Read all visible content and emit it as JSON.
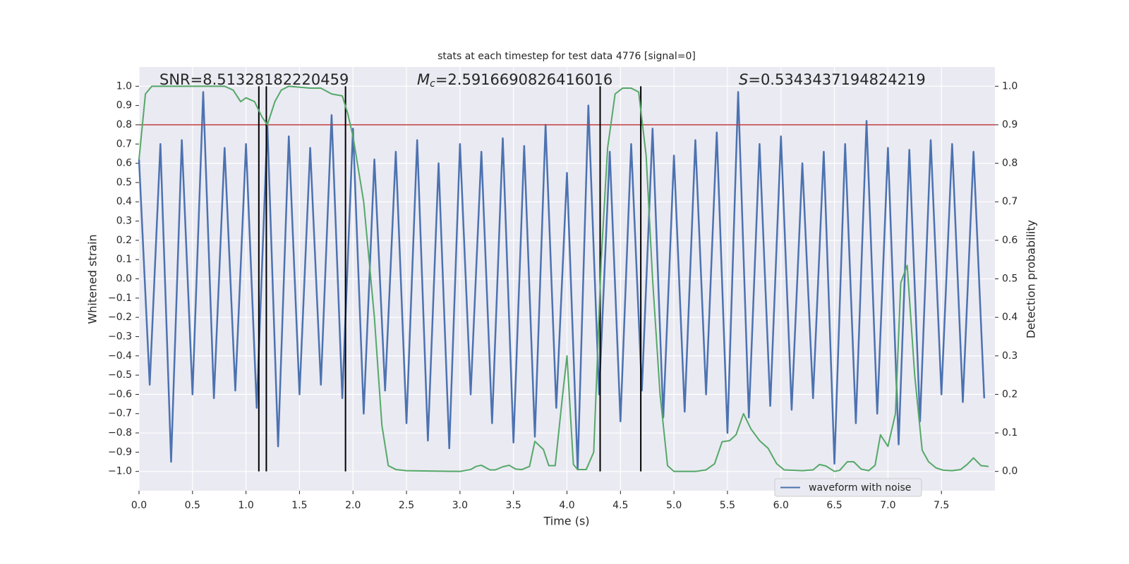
{
  "chart_data": {
    "type": "line",
    "title": "stats at each timestep for test data 4776 [signal=0]",
    "xlabel": "Time (s)",
    "ylabel": "Whitened strain",
    "y2label": "Detection probability",
    "annotations": [
      {
        "text": "SNR=8.51328182220459"
      },
      {
        "symbol": "M",
        "subscript": "c",
        "text": "=2.5916690826416016"
      },
      {
        "symbol": "S",
        "text": "=0.5343437194824219"
      }
    ],
    "xlim": [
      0,
      8
    ],
    "ylim": [
      -1.1,
      1.1
    ],
    "y2lim": [
      -0.05,
      1.05
    ],
    "xticks": [
      {
        "value": 0,
        "label": "0.0"
      },
      0.5,
      {
        "value": 1,
        "label": "1.0"
      },
      1.5,
      {
        "value": 2,
        "label": "2.0"
      },
      2.5,
      {
        "value": 3,
        "label": "3.0"
      },
      3.5,
      {
        "value": 4,
        "label": "4.0"
      },
      4.5,
      {
        "value": 5,
        "label": "5.0"
      },
      5.5,
      {
        "value": 6,
        "label": "6.0"
      },
      6.5,
      {
        "value": 7,
        "label": "7.0"
      },
      7.5
    ],
    "yticks": [
      {
        "value": -1,
        "label": "−1.0"
      },
      {
        "value": -0.9,
        "label": "−0.9"
      },
      {
        "value": -0.8,
        "label": "−0.8"
      },
      {
        "value": -0.7,
        "label": "−0.7"
      },
      {
        "value": -0.6,
        "label": "−0.6"
      },
      {
        "value": -0.5,
        "label": "−0.5"
      },
      {
        "value": -0.4,
        "label": "−0.4"
      },
      {
        "value": -0.3,
        "label": "−0.3"
      },
      {
        "value": -0.2,
        "label": "−0.2"
      },
      {
        "value": -0.1,
        "label": "−0.1"
      },
      {
        "value": 0,
        "label": "0.0"
      },
      0.1,
      0.2,
      0.3,
      0.4,
      0.5,
      0.6,
      0.7,
      0.8,
      0.9,
      {
        "value": 1,
        "label": "1.0"
      }
    ],
    "y2ticks": [
      {
        "value": 0,
        "label": "0.0"
      },
      0.1,
      0.2,
      0.3,
      0.4,
      0.5,
      0.6,
      0.7,
      0.8,
      0.9,
      {
        "value": 1,
        "label": "1.0"
      }
    ],
    "grid": true,
    "legend": "lower right",
    "hline": {
      "value": 0.8,
      "color": "#c03d3e"
    },
    "vlines": [
      1.12,
      1.19,
      1.93,
      4.31,
      4.69
    ],
    "vline_range": [
      -1,
      1
    ],
    "series": [
      {
        "name": "waveform with noise",
        "color": "#4c72b0",
        "x": [
          0.0,
          0.1,
          0.2,
          0.3,
          0.4,
          0.5,
          0.6,
          0.7,
          0.8,
          0.9,
          1.0,
          1.1,
          1.2,
          1.3,
          1.4,
          1.5,
          1.6,
          1.7,
          1.8,
          1.9,
          2.0,
          2.1,
          2.2,
          2.3,
          2.4,
          2.5,
          2.6,
          2.7,
          2.8,
          2.9,
          3.0,
          3.1,
          3.2,
          3.3,
          3.4,
          3.5,
          3.6,
          3.7,
          3.8,
          3.9,
          4.0,
          4.1,
          4.2,
          4.3,
          4.4,
          4.5,
          4.6,
          4.7,
          4.8,
          4.9,
          5.0,
          5.1,
          5.2,
          5.3,
          5.4,
          5.5,
          5.6,
          5.7,
          5.8,
          5.9,
          6.0,
          6.1,
          6.2,
          6.3,
          6.4,
          6.5,
          6.6,
          6.7,
          6.8,
          6.9,
          7.0,
          7.1,
          7.2,
          7.3,
          7.4,
          7.5,
          7.6,
          7.7,
          7.8,
          7.9
        ],
        "values": [
          0.62,
          -0.55,
          0.7,
          -0.95,
          0.72,
          -0.6,
          0.97,
          -0.62,
          0.68,
          -0.58,
          0.7,
          -0.67,
          0.8,
          -0.87,
          0.74,
          -0.6,
          0.68,
          -0.55,
          0.85,
          -0.62,
          0.78,
          -0.7,
          0.62,
          -0.58,
          0.66,
          -0.75,
          0.72,
          -0.84,
          0.6,
          -0.88,
          0.7,
          -0.6,
          0.66,
          -0.75,
          0.73,
          -0.85,
          0.69,
          -0.82,
          0.8,
          -0.67,
          0.55,
          -0.99,
          0.9,
          -0.6,
          0.66,
          -0.74,
          0.7,
          -0.58,
          0.78,
          -0.72,
          0.64,
          -0.69,
          0.72,
          -0.6,
          0.76,
          -0.8,
          0.97,
          -0.72,
          0.7,
          -0.66,
          0.74,
          -0.68,
          0.6,
          -0.62,
          0.66,
          -0.96,
          0.7,
          -0.75,
          0.82,
          -0.7,
          0.68,
          -0.86,
          0.67,
          -0.74,
          0.72,
          -0.6,
          0.7,
          -0.64,
          0.66,
          -0.62
        ]
      },
      {
        "color": "#55a868",
        "axis": "y2",
        "x": [
          0.0,
          0.06,
          0.12,
          0.2,
          0.4,
          0.6,
          0.8,
          0.88,
          0.95,
          1.0,
          1.08,
          1.15,
          1.2,
          1.27,
          1.33,
          1.4,
          1.6,
          1.7,
          1.8,
          1.9,
          1.95,
          2.0,
          2.1,
          2.2,
          2.27,
          2.33,
          2.4,
          2.5,
          3.0,
          3.1,
          3.15,
          3.2,
          3.28,
          3.33,
          3.4,
          3.46,
          3.52,
          3.58,
          3.65,
          3.7,
          3.78,
          3.83,
          3.89,
          3.96,
          4.0,
          4.06,
          4.1,
          4.18,
          4.25,
          4.32,
          4.38,
          4.45,
          4.52,
          4.6,
          4.67,
          4.74,
          4.8,
          4.87,
          4.94,
          5.0,
          5.2,
          5.3,
          5.38,
          5.45,
          5.52,
          5.58,
          5.65,
          5.72,
          5.8,
          5.88,
          5.96,
          6.03,
          6.2,
          6.3,
          6.36,
          6.42,
          6.5,
          6.55,
          6.62,
          6.68,
          6.75,
          6.82,
          6.88,
          6.93,
          7.0,
          7.07,
          7.12,
          7.18,
          7.25,
          7.32,
          7.38,
          7.45,
          7.52,
          7.6,
          7.68,
          7.74,
          7.8,
          7.87,
          7.94
        ],
        "values": [
          0.81,
          0.98,
          1.0,
          1.0,
          1.0,
          1.0,
          1.0,
          0.99,
          0.96,
          0.97,
          0.96,
          0.92,
          0.9,
          0.96,
          0.99,
          1.0,
          0.995,
          0.995,
          0.98,
          0.975,
          0.93,
          0.87,
          0.7,
          0.4,
          0.12,
          0.015,
          0.005,
          0.002,
          0.0,
          0.005,
          0.013,
          0.016,
          0.004,
          0.004,
          0.012,
          0.016,
          0.006,
          0.005,
          0.013,
          0.078,
          0.057,
          0.015,
          0.015,
          0.2,
          0.3,
          0.018,
          0.005,
          0.005,
          0.05,
          0.55,
          0.84,
          0.98,
          0.995,
          0.995,
          0.985,
          0.82,
          0.5,
          0.2,
          0.015,
          0.0,
          0.0,
          0.004,
          0.02,
          0.077,
          0.08,
          0.095,
          0.15,
          0.11,
          0.08,
          0.06,
          0.02,
          0.004,
          0.002,
          0.004,
          0.018,
          0.014,
          0.0,
          0.003,
          0.025,
          0.025,
          0.006,
          0.002,
          0.016,
          0.095,
          0.065,
          0.15,
          0.49,
          0.535,
          0.25,
          0.055,
          0.025,
          0.009,
          0.003,
          0.002,
          0.005,
          0.018,
          0.035,
          0.015,
          0.013
        ]
      }
    ]
  }
}
